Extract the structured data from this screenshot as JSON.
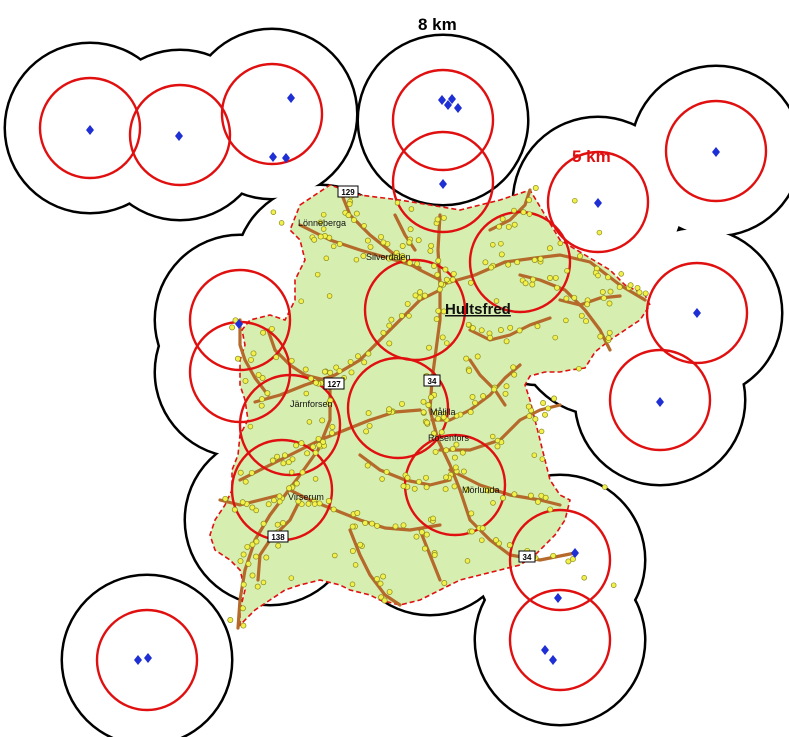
{
  "legend": {
    "outer_radius_label": "8 km",
    "inner_radius_label": "5 km",
    "outer_color": "#000000",
    "inner_color": "#e01010"
  },
  "colors": {
    "area_fill": "#d6eeb0",
    "area_border": "#e01010",
    "road": "#b5692a",
    "site": "#1f2fd6",
    "point_fill": "#f2f04a",
    "point_stroke": "#8a8a20"
  },
  "places": [
    {
      "id": "hultsfred",
      "name": "Hultsfred",
      "major": true
    },
    {
      "id": "malilla",
      "name": "Målilla"
    },
    {
      "id": "rosenfors",
      "name": "Rosenfors"
    },
    {
      "id": "mohed",
      "name": "Mörlunda"
    },
    {
      "id": "virserum",
      "name": "Virserum"
    },
    {
      "id": "jarnforsen",
      "name": "Järnforsen"
    },
    {
      "id": "lonneberga",
      "name": "Lönneberga"
    },
    {
      "id": "silverdalen",
      "name": "Silverdalen"
    }
  ],
  "roads": [
    "129",
    "127",
    "34",
    "138",
    "34"
  ],
  "icons": {
    "site_marker": "blue-diamond-icon",
    "settlement_point": "yellow-dot-icon"
  }
}
